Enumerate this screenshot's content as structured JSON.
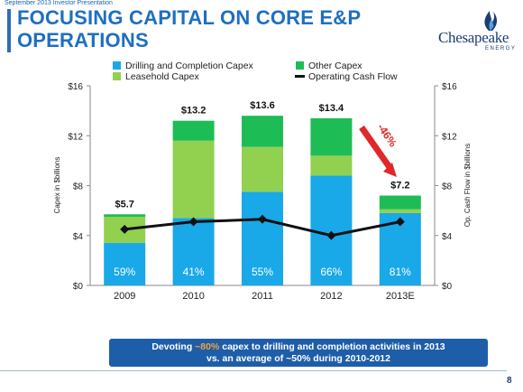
{
  "header": {
    "topline": "September 2013 Investor Presentation",
    "title_line1": "FOCUSING CAPITAL ON CORE E&P",
    "title_line2": "OPERATIONS"
  },
  "logo": {
    "word": "Chesapeake",
    "sub": "ENERGY"
  },
  "callout": {
    "part1": "Devoting ",
    "highlight": "~80%",
    "part2": " capex to drilling and completion activities in 2013",
    "line2": "vs. an average of ~50% during 2010-2012"
  },
  "page_number": "8",
  "chart_data": {
    "type": "bar",
    "stacked": true,
    "categories": [
      "2009",
      "2010",
      "2011",
      "2012",
      "2013E"
    ],
    "series": [
      {
        "name": "Drilling and Completion Capex",
        "color": "#19a8e8",
        "values": [
          3.4,
          5.4,
          7.5,
          8.8,
          5.8
        ]
      },
      {
        "name": "Leasehold Capex",
        "color": "#92d050",
        "values": [
          2.1,
          6.2,
          3.6,
          1.6,
          0.3
        ]
      },
      {
        "name": "Other Capex",
        "color": "#1ebc55",
        "values": [
          0.2,
          1.6,
          2.5,
          3.0,
          1.1
        ]
      }
    ],
    "line_series": {
      "name": "Operating Cash Flow",
      "color": "#111111",
      "values": [
        4.5,
        5.1,
        5.3,
        4.0,
        5.1
      ]
    },
    "totals": [
      "$5.7",
      "$13.2",
      "$13.6",
      "$13.4",
      "$7.2"
    ],
    "share_labels": [
      "59%",
      "41%",
      "55%",
      "66%",
      "81%"
    ],
    "annotation": "-46%",
    "ylabel": "Capex in $billions",
    "ylabel_right": "Op. Cash Flow in $billions",
    "yticks": [
      "$0",
      "$4",
      "$8",
      "$12",
      "$16"
    ],
    "ylim": [
      0,
      16
    ],
    "grid": false,
    "legend_placement": "top"
  }
}
